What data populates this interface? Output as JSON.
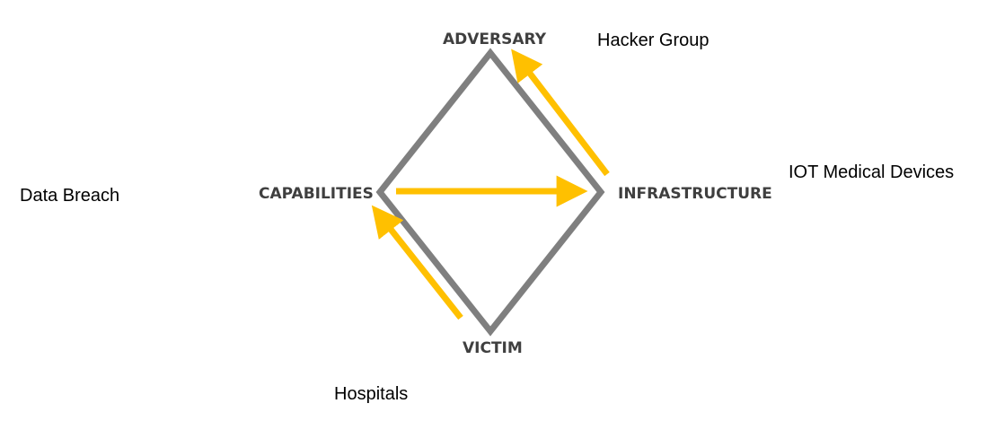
{
  "nodes": {
    "adversary": "ADVERSARY",
    "capabilities": "CAPABILITIES",
    "infrastructure": "INFRASTRUCTURE",
    "victim": "VICTIM"
  },
  "notes": {
    "adversary": "Hacker Group",
    "infrastructure": "IOT Medical Devices",
    "capabilities": "Data Breach",
    "victim": "Hospitals"
  },
  "colors": {
    "diamond": "#7f7f7f",
    "arrow": "#ffc000",
    "node_text": "#3f3f3f",
    "note_text": "#000000"
  },
  "edges": [
    {
      "from": "victim",
      "to": "capabilities"
    },
    {
      "from": "capabilities",
      "to": "infrastructure"
    },
    {
      "from": "infrastructure",
      "to": "adversary"
    }
  ]
}
